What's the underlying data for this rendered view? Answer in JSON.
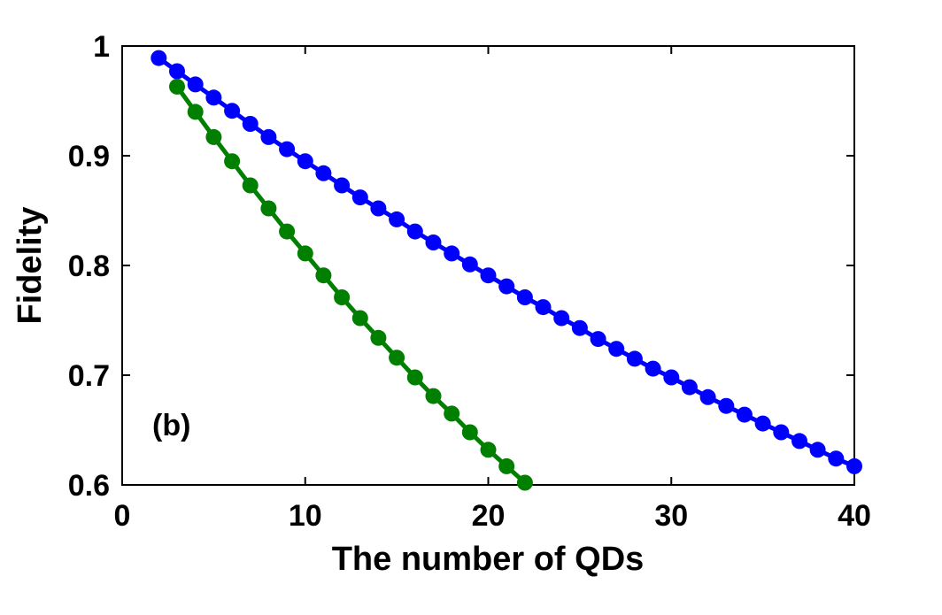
{
  "chart_data": {
    "type": "line",
    "title": "",
    "xlabel": "The number of QDs",
    "ylabel": "Fidelity",
    "xlim": [
      0,
      40
    ],
    "ylim": [
      0.6,
      1.0
    ],
    "xticks": [
      "0",
      "10",
      "20",
      "30",
      "40"
    ],
    "yticks": [
      "0.6",
      "0.7",
      "0.8",
      "0.9",
      "1"
    ],
    "grid": false,
    "legend": "none",
    "annotation": "(b)",
    "series": [
      {
        "color": "#0000ff",
        "marker": "circle",
        "x": [
          2,
          3,
          4,
          5,
          6,
          7,
          8,
          9,
          10,
          11,
          12,
          13,
          14,
          15,
          16,
          17,
          18,
          19,
          20,
          21,
          22,
          23,
          24,
          25,
          26,
          27,
          28,
          29,
          30,
          31,
          32,
          33,
          34,
          35,
          36,
          37,
          38,
          39,
          40
        ],
        "y": [
          0.989,
          0.977,
          0.965,
          0.953,
          0.941,
          0.929,
          0.917,
          0.906,
          0.895,
          0.884,
          0.873,
          0.862,
          0.852,
          0.842,
          0.831,
          0.821,
          0.811,
          0.801,
          0.791,
          0.781,
          0.771,
          0.762,
          0.752,
          0.743,
          0.733,
          0.724,
          0.715,
          0.706,
          0.698,
          0.689,
          0.68,
          0.672,
          0.664,
          0.656,
          0.648,
          0.64,
          0.632,
          0.624,
          0.617
        ]
      },
      {
        "color": "#007f00",
        "marker": "circle",
        "x": [
          3,
          4,
          5,
          6,
          7,
          8,
          9,
          10,
          11,
          12,
          13,
          14,
          15,
          16,
          17,
          18,
          19,
          20,
          21,
          22
        ],
        "y": [
          0.963,
          0.94,
          0.917,
          0.895,
          0.873,
          0.852,
          0.831,
          0.811,
          0.791,
          0.771,
          0.752,
          0.734,
          0.716,
          0.698,
          0.681,
          0.665,
          0.648,
          0.632,
          0.617,
          0.602
        ]
      }
    ]
  }
}
